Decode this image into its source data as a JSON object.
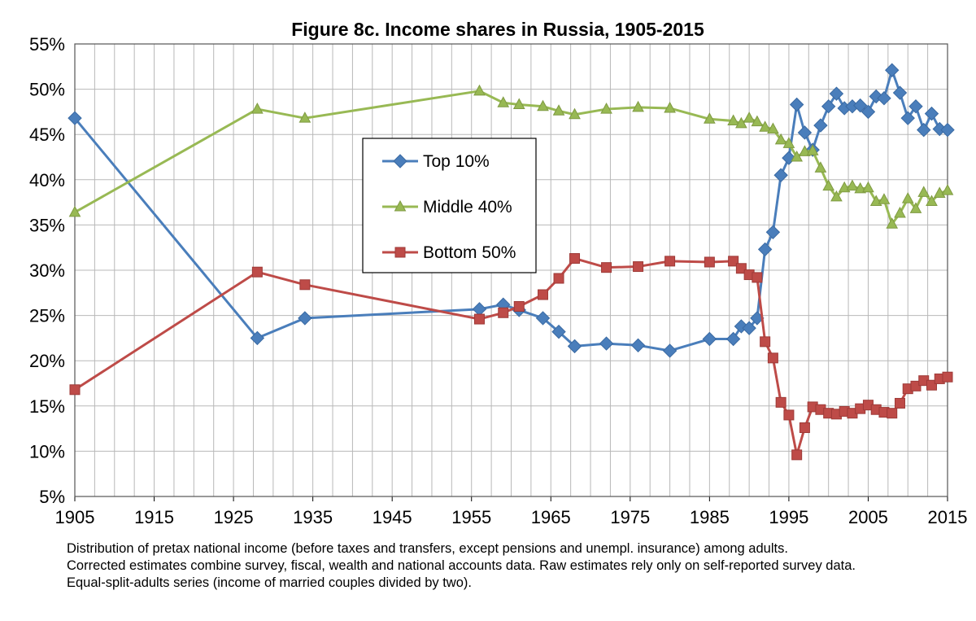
{
  "chart_data": {
    "type": "line",
    "title": "Figure 8c. Income shares in Russia, 1905-2015",
    "xlabel": "",
    "ylabel": "",
    "xlim": [
      1905,
      2015
    ],
    "ylim": [
      5,
      55
    ],
    "x_ticks": [
      "1905",
      "1915",
      "1925",
      "1935",
      "1945",
      "1955",
      "1965",
      "1975",
      "1985",
      "1995",
      "2005",
      "2015"
    ],
    "y_ticks": [
      "5%",
      "10%",
      "15%",
      "20%",
      "25%",
      "30%",
      "35%",
      "40%",
      "45%",
      "50%",
      "55%"
    ],
    "grid": true,
    "legend_position": "center",
    "series": [
      {
        "name": "Top 10%",
        "color": "#4a7ebb",
        "marker": "diamond",
        "x": [
          1905,
          1928,
          1934,
          1956,
          1959,
          1961,
          1964,
          1966,
          1968,
          1972,
          1976,
          1980,
          1985,
          1988,
          1989,
          1990,
          1991,
          1992,
          1993,
          1994,
          1995,
          1996,
          1997,
          1998,
          1999,
          2000,
          2001,
          2002,
          2003,
          2004,
          2005,
          2006,
          2007,
          2008,
          2009,
          2010,
          2011,
          2012,
          2013,
          2014,
          2015
        ],
        "values": [
          46.8,
          22.5,
          24.7,
          25.7,
          26.2,
          25.6,
          24.7,
          23.2,
          21.6,
          21.9,
          21.7,
          21.1,
          22.4,
          22.4,
          23.8,
          23.6,
          24.7,
          32.3,
          34.2,
          40.5,
          42.4,
          48.3,
          45.2,
          43.3,
          46.0,
          48.1,
          49.5,
          47.9,
          48.1,
          48.2,
          47.5,
          49.2,
          49.0,
          52.1,
          49.6,
          46.8,
          48.1,
          45.5,
          47.3,
          45.6,
          45.5
        ]
      },
      {
        "name": "Middle 40%",
        "color": "#98b954",
        "marker": "triangle",
        "x": [
          1905,
          1928,
          1934,
          1956,
          1959,
          1961,
          1964,
          1966,
          1968,
          1972,
          1976,
          1980,
          1985,
          1988,
          1989,
          1990,
          1991,
          1992,
          1993,
          1994,
          1995,
          1996,
          1997,
          1998,
          1999,
          2000,
          2001,
          2002,
          2003,
          2004,
          2005,
          2006,
          2007,
          2008,
          2009,
          2010,
          2011,
          2012,
          2013,
          2014,
          2015
        ],
        "values": [
          36.4,
          47.8,
          46.8,
          49.8,
          48.5,
          48.3,
          48.1,
          47.6,
          47.2,
          47.8,
          48.0,
          47.9,
          46.7,
          46.5,
          46.2,
          46.8,
          46.4,
          45.8,
          45.6,
          44.4,
          44.0,
          42.5,
          43.1,
          43.2,
          41.3,
          39.3,
          38.1,
          39.1,
          39.3,
          39.0,
          39.1,
          37.6,
          37.8,
          35.1,
          36.3,
          37.9,
          36.8,
          38.6,
          37.6,
          38.5,
          38.8
        ]
      },
      {
        "name": "Bottom 50%",
        "color": "#be4b48",
        "marker": "square",
        "x": [
          1905,
          1928,
          1934,
          1956,
          1959,
          1961,
          1964,
          1966,
          1968,
          1972,
          1976,
          1980,
          1985,
          1988,
          1989,
          1990,
          1991,
          1992,
          1993,
          1994,
          1995,
          1996,
          1997,
          1998,
          1999,
          2000,
          2001,
          2002,
          2003,
          2004,
          2005,
          2006,
          2007,
          2008,
          2009,
          2010,
          2011,
          2012,
          2013,
          2014,
          2015
        ],
        "values": [
          16.8,
          29.8,
          28.4,
          24.6,
          25.3,
          26.0,
          27.3,
          29.1,
          31.3,
          30.3,
          30.4,
          31.0,
          30.9,
          31.0,
          30.2,
          29.5,
          29.2,
          22.1,
          20.3,
          15.4,
          14.0,
          9.6,
          12.6,
          14.9,
          14.6,
          14.2,
          14.1,
          14.4,
          14.2,
          14.7,
          15.1,
          14.6,
          14.3,
          14.2,
          15.3,
          16.9,
          17.2,
          17.8,
          17.3,
          18.0,
          18.2
        ]
      }
    ]
  },
  "caption": {
    "line1": "Distribution of pretax national income (before taxes and transfers, except pensions and unempl. insurance) among adults.",
    "line2": "Corrected estimates combine survey, fiscal, wealth and national accounts data. Raw estimates rely only on self-reported survey data.",
    "line3": "Equal-split-adults series (income of married couples divided by two)."
  }
}
